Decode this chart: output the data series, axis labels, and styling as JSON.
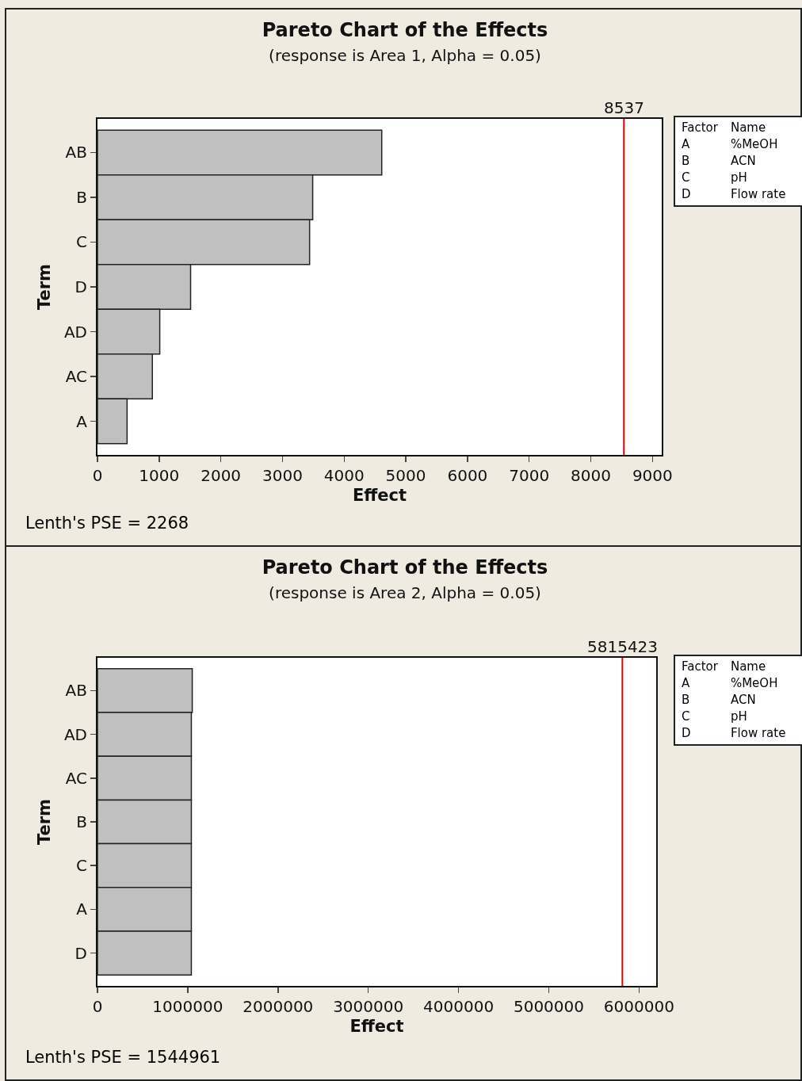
{
  "chart_data": [
    {
      "type": "bar",
      "orientation": "horizontal",
      "title": "Pareto Chart of the Effects",
      "subtitle": "(response is Area 1, Alpha = 0.05)",
      "xlabel": "Effect",
      "ylabel": "Term",
      "categories": [
        "AB",
        "B",
        "C",
        "D",
        "AD",
        "AC",
        "A"
      ],
      "values": [
        4610,
        3490,
        3440,
        1510,
        1010,
        890,
        480
      ],
      "color": "#c0c0c0",
      "xlim": [
        0,
        9150
      ],
      "xticks": [
        0,
        1000,
        2000,
        3000,
        4000,
        5000,
        6000,
        7000,
        8000,
        9000
      ],
      "grid": false,
      "ref_lines": [
        {
          "axis": "x",
          "value": 8537,
          "label": "8537",
          "color": "#e00000"
        }
      ],
      "annotations": [
        "Factor Name",
        "A %MeOH",
        "B ACN",
        "C pH",
        "D Flow rate",
        "Lenth's PSE = 2268"
      ]
    },
    {
      "type": "bar",
      "orientation": "horizontal",
      "title": "Pareto Chart of the Effects",
      "subtitle": "(response is Area 2, Alpha = 0.05)",
      "xlabel": "Effect",
      "ylabel": "Term",
      "categories": [
        "AB",
        "AD",
        "AC",
        "B",
        "C",
        "A",
        "D"
      ],
      "values": [
        1050000,
        1040000,
        1040000,
        1040000,
        1040000,
        1040000,
        1040000
      ],
      "color": "#c0c0c0",
      "xlim": [
        0,
        6190000
      ],
      "xticks": [
        0,
        1000000,
        2000000,
        3000000,
        4000000,
        5000000,
        6000000
      ],
      "grid": false,
      "ref_lines": [
        {
          "axis": "x",
          "value": 5815423,
          "label": "5815423",
          "color": "#e00000"
        }
      ],
      "annotations": [
        "Factor Name",
        "A %MeOH",
        "B ACN",
        "C pH",
        "D Flow rate",
        "Lenth's PSE = 1544961"
      ]
    }
  ]
}
